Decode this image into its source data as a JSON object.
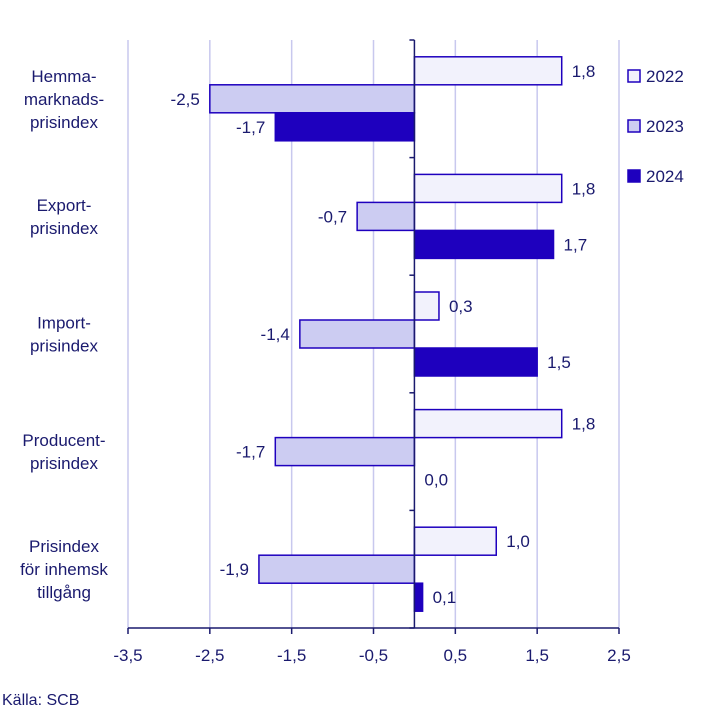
{
  "chart_data": {
    "type": "bar",
    "orientation": "horizontal",
    "categories": [
      [
        "Hemma-",
        "marknads-",
        "prisindex"
      ],
      [
        "Export-",
        "prisindex"
      ],
      [
        "Import-",
        "prisindex"
      ],
      [
        "Producent-",
        "prisindex"
      ],
      [
        "Prisindex",
        "för inhemsk",
        "tillgång"
      ]
    ],
    "series": [
      {
        "name": "2022",
        "color": "#f2f2fc",
        "values": [
          1.8,
          1.8,
          0.3,
          1.8,
          1.0
        ],
        "labels": [
          "1,8",
          "1,8",
          "0,3",
          "1,8",
          "1,0"
        ]
      },
      {
        "name": "2023",
        "color": "#ccccf2",
        "values": [
          -2.5,
          -0.7,
          -1.4,
          -1.7,
          -1.9
        ],
        "labels": [
          "-2,5",
          "-0,7",
          "-1,4",
          "-1,7",
          "-1,9"
        ]
      },
      {
        "name": "2024",
        "color": "#1e00be",
        "values": [
          -1.7,
          1.7,
          1.5,
          0.0,
          0.1
        ],
        "labels": [
          "-1,7",
          "1,7",
          "1,5",
          "0,0",
          "0,1"
        ]
      }
    ],
    "xlim": [
      -3.5,
      2.5
    ],
    "xticks": [
      -3.5,
      -2.5,
      -1.5,
      -0.5,
      0.5,
      1.5,
      2.5
    ],
    "xtick_labels": [
      "-3,5",
      "-2,5",
      "-1,5",
      "-0,5",
      "0,5",
      "1,5",
      "2,5"
    ],
    "gridlines": true,
    "legend_position": "top-right",
    "axis_color": "#1a1a6e",
    "grid_color": "#c8c8ee",
    "bar_edge_color": "#1e00be"
  },
  "source": "Källa: SCB"
}
